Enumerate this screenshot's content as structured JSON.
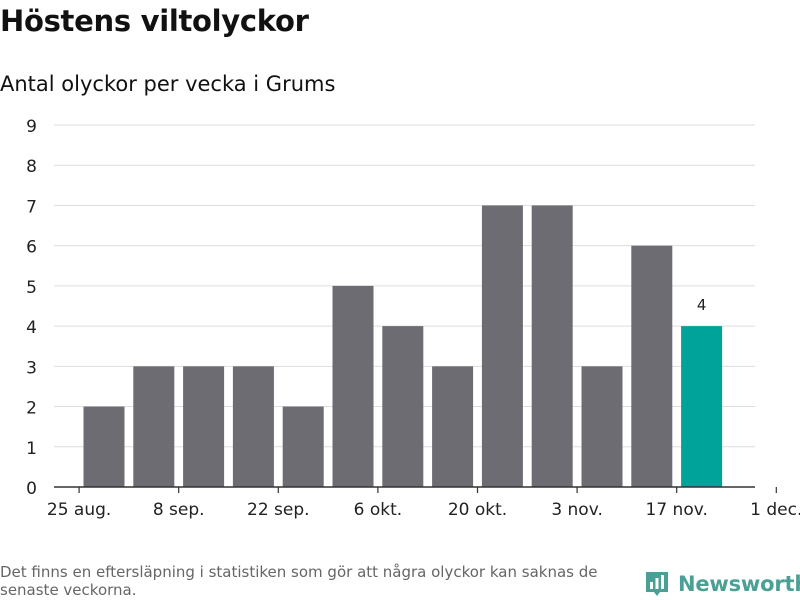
{
  "header": {
    "title": "Höstens viltolyckor",
    "subtitle": "Antal olyckor per vecka i Grums"
  },
  "footer": {
    "note": "Det finns en eftersläpning i statistiken som gör att några olyckor kan saknas de senaste veckorna.",
    "brand": "Newsworthy",
    "brand_icon": "bar-chart-logo-icon"
  },
  "colors": {
    "bar": "#6d6c72",
    "highlight": "#00a39a",
    "grid": "#dddddd",
    "axis": "#333333",
    "brand": "#4aa095"
  },
  "chart_data": {
    "type": "bar",
    "x": [
      "2019-09-02",
      "2019-09-09",
      "2019-09-16",
      "2019-09-23",
      "2019-09-30",
      "2019-10-07",
      "2019-10-14",
      "2019-10-21",
      "2019-10-28",
      "2019-11-04",
      "2019-11-11",
      "2019-11-18",
      "2019-11-25"
    ],
    "values": [
      2,
      3,
      3,
      3,
      2,
      5,
      4,
      3,
      7,
      7,
      3,
      6,
      4
    ],
    "highlight_index": 12,
    "data_labels": [
      {
        "index": 12,
        "text": "4"
      }
    ],
    "x_ticks": [
      "25 aug.",
      "8 sep.",
      "22 sep.",
      "6 okt.",
      "20 okt.",
      "3 nov.",
      "17 nov.",
      "1 dec."
    ],
    "y_ticks": [
      "0",
      "1",
      "2",
      "3",
      "4",
      "5",
      "6",
      "7",
      "8",
      "9"
    ],
    "ylim": [
      0,
      9
    ],
    "xlabel": "",
    "ylabel": "",
    "grid": true
  }
}
